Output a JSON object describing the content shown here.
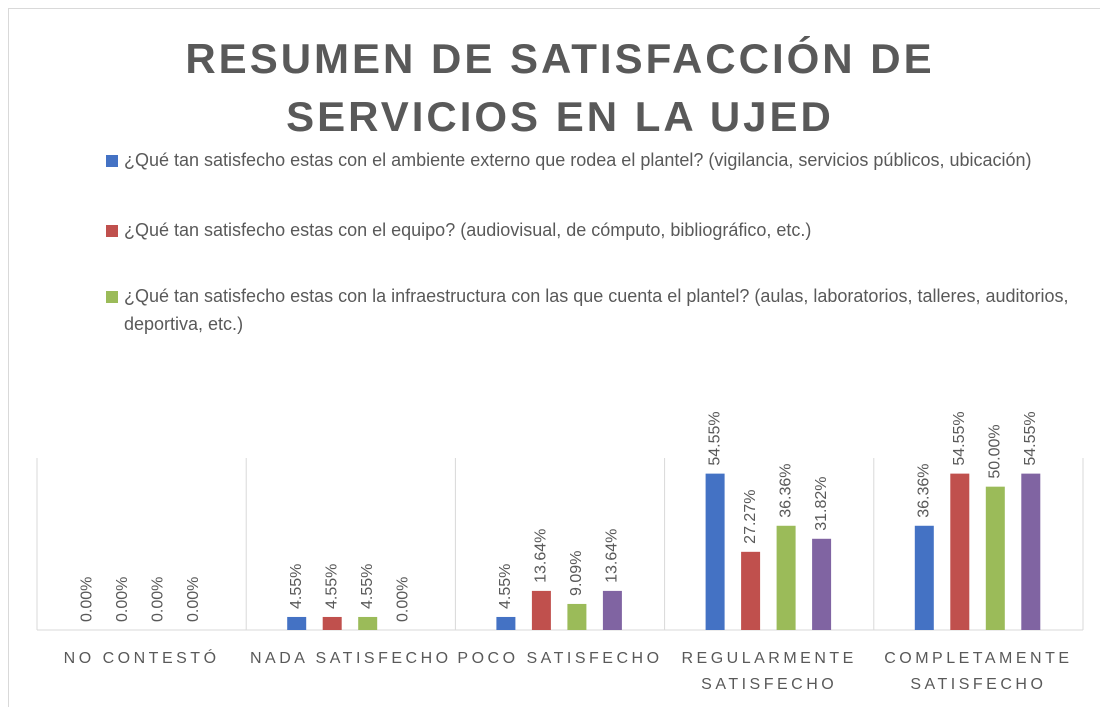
{
  "chart_data": {
    "type": "bar",
    "title": "RESUMEN DE SATISFACCIÓN DE SERVICIOS EN LA UJED",
    "categories": [
      "NO CONTESTÓ",
      "NADA SATISFECHO",
      "POCO SATISFECHO",
      "REGULARMENTE SATISFECHO",
      "COMPLETAMENTE SATISFECHO"
    ],
    "series": [
      {
        "name": "¿Qué tan satisfecho estas con el ambiente externo que rodea el plantel? (vigilancia, servicios públicos, ubicación)",
        "color": "#4472c4",
        "values": [
          0,
          4.55,
          4.55,
          54.55,
          36.36
        ],
        "value_labels": [
          "0.00%",
          "4.55%",
          "4.55%",
          "54.55%",
          "36.36%"
        ]
      },
      {
        "name": "¿Qué tan satisfecho estas con el equipo? (audiovisual, de cómputo, bibliográfico, etc.)",
        "color": "#c0504d",
        "values": [
          0,
          4.55,
          13.64,
          27.27,
          54.55
        ],
        "value_labels": [
          "0.00%",
          "4.55%",
          "13.64%",
          "27.27%",
          "54.55%"
        ]
      },
      {
        "name": "¿Qué tan satisfecho estas con la infraestructura con las que cuenta el plantel? (aulas, laboratorios, talleres, auditorios, deportiva, etc.)",
        "color": "#9bbb59",
        "values": [
          0,
          4.55,
          9.09,
          36.36,
          50.0
        ],
        "value_labels": [
          "0.00%",
          "4.55%",
          "9.09%",
          "36.36%",
          "50.00%"
        ]
      },
      {
        "color": "#8064a2",
        "values": [
          0,
          0,
          13.64,
          31.82,
          54.55
        ],
        "value_labels": [
          "0.00%",
          "0.00%",
          "13.64%",
          "31.82%",
          "54.55%"
        ]
      }
    ],
    "ylim": [
      0,
      60
    ]
  }
}
